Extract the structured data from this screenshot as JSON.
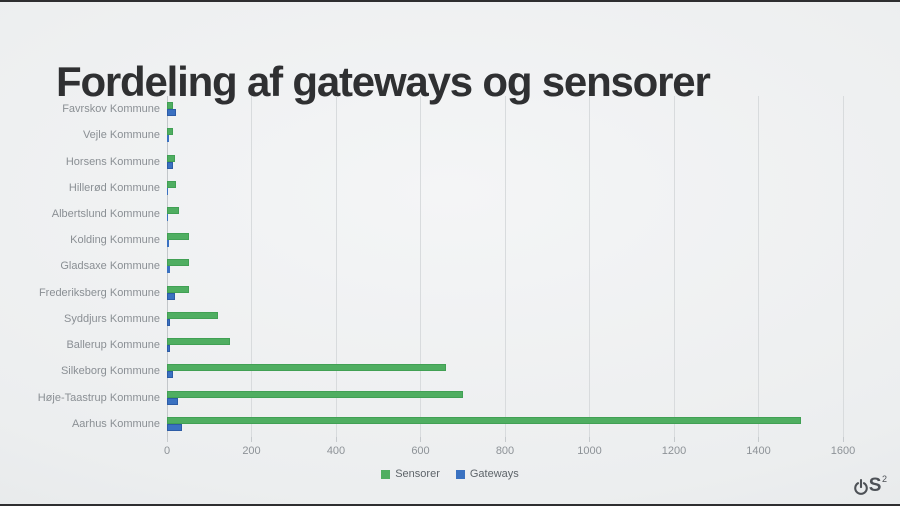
{
  "slide": {
    "title": "Fordeling af gateways og sensorer"
  },
  "chart_data": {
    "type": "bar",
    "orientation": "horizontal",
    "title": "Fordeling af gateways og sensorer",
    "categories": [
      "Favrskov Kommune",
      "Vejle Kommune",
      "Horsens Kommune",
      "Hillerød Kommune",
      "Albertslund Kommune",
      "Kolding Kommune",
      "Gladsaxe Kommune",
      "Frederiksberg Kommune",
      "Syddjurs Kommune",
      "Ballerup Kommune",
      "Silkeborg Kommune",
      "Høje-Taastrup Kommune",
      "Aarhus Kommune"
    ],
    "series": [
      {
        "name": "Sensorer",
        "color": "#4fae61",
        "border_color": "#41a054",
        "values": [
          15,
          14,
          20,
          22,
          28,
          52,
          51,
          52,
          120,
          150,
          660,
          700,
          1500
        ]
      },
      {
        "name": "Gateways",
        "color": "#3a71c1",
        "border_color": "#2d5ca6",
        "values": [
          21,
          4,
          15,
          1,
          3,
          5,
          7,
          19,
          8,
          8,
          15,
          25,
          35
        ]
      }
    ],
    "xlim": [
      0,
      1600
    ],
    "x_ticks": [
      0,
      200,
      400,
      600,
      800,
      1000,
      1200,
      1400,
      1600
    ],
    "grid": true,
    "legend_position": "bottom",
    "xlabel": "",
    "ylabel": ""
  },
  "legend": {
    "items": [
      {
        "label": "Sensorer",
        "color": "#4fae61"
      },
      {
        "label": "Gateways",
        "color": "#3a71c1"
      }
    ]
  },
  "logo": {
    "text": "S",
    "superscript": "2"
  }
}
